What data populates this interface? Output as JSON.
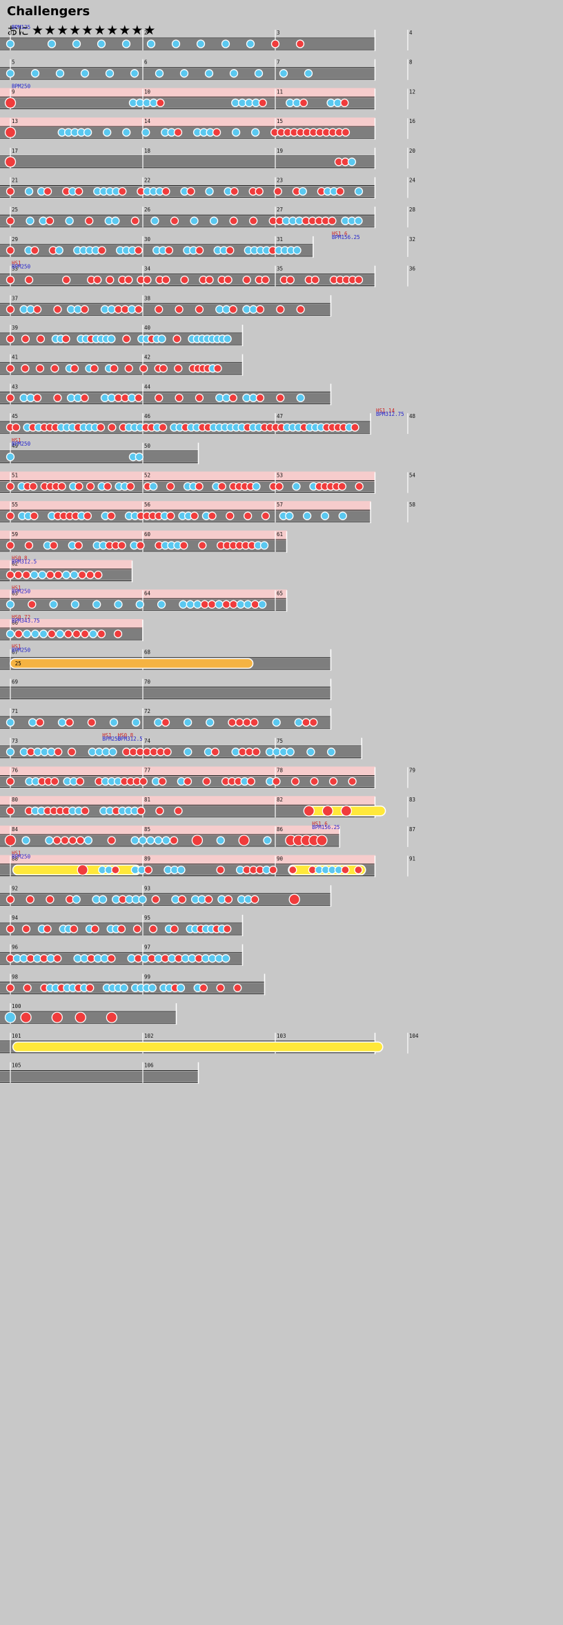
{
  "song": {
    "title": "Challengers",
    "difficulty": "おに",
    "stars": "★★★★★★★★★★"
  },
  "colors": {
    "don": "#f03c3c",
    "ka": "#5ac8f0",
    "drumroll": "#ffe83a",
    "balloon": "#f5b342",
    "gogo": "#f6cccc",
    "lane": "#7e7e7e",
    "bg": "#c8c8c8",
    "tempo": "#2222cc",
    "scroll": "#cc2222"
  },
  "rows": [
    {
      "bars": [
        1,
        2,
        3,
        4
      ],
      "markers": [
        {
          "bar": 1,
          "bpm": "BPM125"
        }
      ],
      "notes": "k....k..k..k..k..k..k..k..k..k..d..d.."
    },
    {
      "bars": [
        5,
        6,
        7,
        8
      ],
      "notes": "k..k..k..k..k..k..k..k..k..k..k..k..k.."
    },
    {
      "bars": [
        9,
        10,
        11,
        12
      ],
      "gogo": true,
      "markers": [
        {
          "bar": 9,
          "bpm": "BPM250"
        }
      ],
      "notes": "D.................kkkkd..........kkkkd...kkd...kkd.."
    },
    {
      "bars": [
        13,
        14,
        15,
        16
      ],
      "gogo": true,
      "notes": "D.......kkkkk..k..k..k..kkd..kkkd..k..k..dddddddddddd.."
    },
    {
      "bars": [
        17,
        18,
        19,
        20
      ],
      "notes": "D.................................................ddk."
    },
    {
      "bars": [
        21,
        22,
        23,
        24
      ],
      "notes": "d..k.kd..dkd..kkkkd..dkkkd..kd..k..kd..dd..d..dk..dkkd..k"
    },
    {
      "bars": [
        25,
        26,
        27,
        28
      ],
      "notes": "d..k.kd..k..d..kk..d..k..d..k..k..d..d..ddkkkddddd.kkk"
    },
    {
      "bars": [
        29,
        30,
        31,
        32
      ],
      "notes": "d..kd..dk..kkkkd..kkkd..kkd..kkd..kkd..kkkkdkkkk",
      "markers": [
        {
          "bar": 32,
          "bpm": "BPM156.25",
          "hs": "HS1.6",
          "at": 7.25
        }
      ],
      "len": 3.55
    },
    {
      "bars": [
        33,
        34,
        35,
        36
      ],
      "markers": [
        {
          "bar": 33,
          "bpm": "BPM250",
          "hs": "HS1"
        }
      ],
      "notes": "d..d.....d...dd.d.dd.dd.dd..d..dd.dd..d.dd..dd..dd..ddddd"
    },
    {
      "bars": [
        37,
        38
      ],
      "len": 3.75,
      "notes": "d.kkd..d.kkd..kkddkd..d..d..d..kkd.kkd..d..d.."
    },
    {
      "bars": [
        39,
        40
      ],
      "len": 2.75,
      "notes": "d..d..d..kkd..kkdkkkk..d..kkdkk..d..kkkkkkkk"
    },
    {
      "bars": [
        41,
        42
      ],
      "len": 2.75,
      "notes": "d..d..d..d..kd..kd..kd..d..d..dd..d..ddddkd.."
    },
    {
      "bars": [
        43,
        44
      ],
      "len": 3.75,
      "notes": "d.kkd..d.kkd..kkddkd..d..d..d..kkd.kkd..d..k.."
    },
    {
      "bars": [
        45,
        46,
        47,
        48
      ],
      "len": 4.2,
      "markers": [
        {
          "bar": 48,
          "bpm": "BPM312.75",
          "hs": "HS1.14",
          "at": 8.25
        }
      ],
      "notes": "dd.kdkdddkkkdkkkd.d.dkkkddkd.kkdkkddkkkkkkdkkddddkkkdkkkddddkd"
    },
    {
      "bars": [
        49,
        50
      ],
      "len": 2.25,
      "markers": [
        {
          "bar": 49,
          "bpm": "BPM250",
          "hs": "HS1"
        }
      ],
      "notes": "k...................kk......."
    },
    {
      "bars": [
        51,
        52,
        53,
        54
      ],
      "gogo": true,
      "notes": "d.kdd.dddd.kd.d.kd.kkd..dk..d..kkd..kd.ddddk..dd..k..kddddd..d"
    },
    {
      "bars": [
        55,
        56,
        57,
        58
      ],
      "gogo": true,
      "len": 4.2,
      "notes": "d.kkd..kddddkd..kd..kkddddkd.kkd.kd..d..d..d..kk..k..k..k.."
    },
    {
      "bars": [
        59,
        60,
        61
      ],
      "gogo": true,
      "len": 3.25,
      "notes": "d..d..kd..kd..kkddd.kd..dkkkd..d..ddddddkk."
    },
    {
      "bars": [
        62
      ],
      "gogo": true,
      "len": 1.5,
      "markers": [
        {
          "bar": 62,
          "bpm": "BPM312.5",
          "hs": "HS0.8"
        }
      ],
      "notes": "dddkkddkkddd.."
    },
    {
      "bars": [
        63,
        64,
        65
      ],
      "gogo": true,
      "len": 3.25,
      "markers": [
        {
          "bar": 63,
          "bpm": "BPM250",
          "hs": "HS1"
        }
      ],
      "notes": "k..d..k..k..k..k..k..k..kkkddkddkkdk."
    },
    {
      "bars": [
        66
      ],
      "gogo": true,
      "len": 1.62,
      "markers": [
        {
          "bar": 66,
          "bpm": "BPM343.75",
          "hs": "HS0.72"
        }
      ],
      "notes": "kdkkkdkdddkd.d"
    },
    {
      "bars": [
        67,
        68
      ],
      "len": 3.75,
      "markers": [
        {
          "bar": 67,
          "bpm": "BPM250",
          "hs": "HS1"
        }
      ],
      "balloon": {
        "from": 0.03,
        "to": 1.8,
        "count": "25"
      }
    },
    {
      "bars": [
        69,
        70
      ],
      "len": 3.75,
      "notes": ""
    },
    {
      "bars": [
        71,
        72
      ],
      "len": 3.75,
      "notes": "k..kd..kd..d..k..k..kd..k..k..dddd..k..kdd"
    },
    {
      "bars": [
        73,
        74,
        75
      ],
      "len": 4.1,
      "markers": [
        {
          "bar": 74,
          "bpm": "BPM312.5",
          "hs": "HS0.8",
          "at": 2.4
        },
        {
          "bar": 75,
          "bpm": "BPM250",
          "hs": "HS1",
          "at": 2.05
        }
      ],
      "notes": "k.kdkkkd.d..kkkk.ddddddd..k..kd..kddd.kkkk..k..k.."
    },
    {
      "bars": [
        76,
        77,
        78,
        79
      ],
      "gogo": true,
      "notes": "d..kkddd.kkd..dkkkdddd.kd..kd..d..dddkd..kd..d..d..d..d."
    },
    {
      "bars": [
        80,
        81,
        82,
        83
      ],
      "gogo": true,
      "rolls": [
        {
          "from": 2.25,
          "to": 2.8
        }
      ],
      "notes": "d..dkkddddkkd..kkdkkkd..d..d....................D..D..D.."
    },
    {
      "bars": [
        84,
        85,
        86,
        87
      ],
      "gogo": true,
      "len": 3.85,
      "markers": [
        {
          "bar": 87,
          "bpm": "BPM156.25",
          "hs": "HS1.6",
          "at": 6.8
        }
      ],
      "notes": "D.k..kddddk..d..kkkkkd..D..k..D..k..DDDDD"
    },
    {
      "bars": [
        88,
        89,
        90,
        91
      ],
      "gogo": true,
      "markers": [
        {
          "bar": 88,
          "bpm": "BPM250",
          "hs": "HS1"
        }
      ],
      "rolls": [
        {
          "from": 0.05,
          "to": 0.95
        },
        {
          "from": 2.13,
          "to": 2.65
        }
      ],
      "notes": "...........D..kkd..kkd..kkk.....d..kdddkd..d..dkkkkd.d"
    },
    {
      "bars": [
        92,
        93
      ],
      "len": 3.75,
      "notes": "d..d..d..dk..kk.kdkkk.d..kd.kkd.kd.kkd.....D..."
    },
    {
      "bars": [
        94,
        95
      ],
      "len": 2.75,
      "notes": "d..d..kd..kkd..kd..kkd..d..d..kd..kkdkkdkd"
    },
    {
      "bars": [
        96,
        97
      ],
      "len": 2.75,
      "notes": "dkkdkdkd..kkdkkd..kdkdkdkdkkdkkkk"
    },
    {
      "bars": [
        98,
        99
      ],
      "len": 3.0,
      "notes": "d..d..dkkdkkdkd..kkkk.kkkk.kkdk..kd..d..d.."
    },
    {
      "bars": [
        100
      ],
      "len": 2.0,
      "notes": "K.D...D..D...D......"
    },
    {
      "bars": [
        101,
        102,
        103,
        104
      ],
      "rolls": [
        {
          "from": 0.05,
          "to": 2.78
        }
      ]
    },
    {
      "bars": [
        105,
        106
      ],
      "len": 2.25,
      "notes": ""
    }
  ]
}
